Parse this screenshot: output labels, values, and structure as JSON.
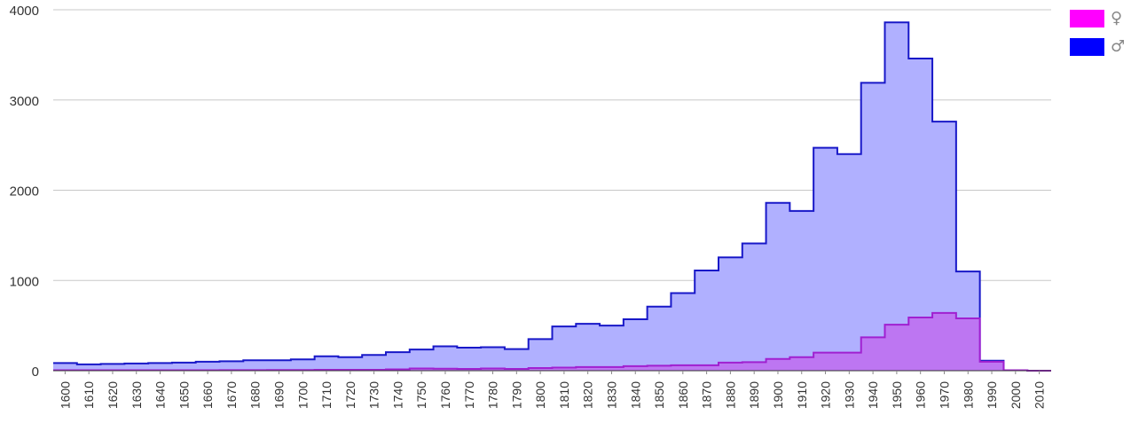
{
  "chart_data": {
    "type": "area",
    "step": true,
    "x": [
      1600,
      1610,
      1620,
      1630,
      1640,
      1650,
      1660,
      1670,
      1680,
      1690,
      1700,
      1710,
      1720,
      1730,
      1740,
      1750,
      1760,
      1770,
      1780,
      1790,
      1800,
      1810,
      1820,
      1830,
      1840,
      1850,
      1860,
      1870,
      1880,
      1890,
      1900,
      1910,
      1920,
      1930,
      1940,
      1950,
      1960,
      1970,
      1980,
      1990,
      2000,
      2010
    ],
    "xlim": [
      1595,
      2015
    ],
    "ylim": [
      0,
      4000
    ],
    "y_ticks": [
      0,
      1000,
      2000,
      3000,
      4000
    ],
    "grid": true,
    "legend_position": "right",
    "series": [
      {
        "name": "♀",
        "color": "#ff00ff",
        "line_color": "#a020d0",
        "fill": "#c06cf0",
        "values": [
          5,
          5,
          5,
          5,
          5,
          5,
          5,
          6,
          6,
          7,
          8,
          10,
          10,
          10,
          15,
          25,
          22,
          20,
          25,
          20,
          30,
          35,
          40,
          40,
          50,
          55,
          60,
          60,
          90,
          95,
          130,
          150,
          200,
          200,
          370,
          510,
          590,
          640,
          580,
          100,
          5,
          0
        ]
      },
      {
        "name": "♂",
        "color": "#0000ff",
        "line_color": "#1818c8",
        "fill": "#b0b0ff",
        "values": [
          85,
          70,
          75,
          80,
          85,
          90,
          100,
          105,
          115,
          115,
          125,
          160,
          150,
          175,
          205,
          235,
          270,
          255,
          260,
          240,
          350,
          490,
          520,
          500,
          570,
          710,
          860,
          1110,
          1255,
          1410,
          1860,
          1770,
          2470,
          2400,
          3190,
          3860,
          3460,
          2760,
          1100,
          110,
          5,
          0
        ]
      }
    ]
  }
}
